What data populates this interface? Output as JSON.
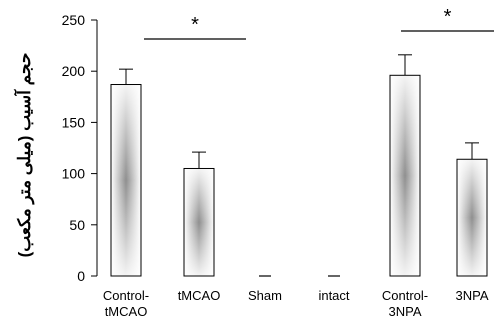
{
  "chart_data": {
    "type": "bar",
    "ylabel": "حجم آسیب (میلی متر مکعب)",
    "ylim": [
      0,
      250
    ],
    "yticks": [
      0,
      50,
      100,
      150,
      200,
      250
    ],
    "categories": [
      [
        "Control-",
        "tMCAO"
      ],
      [
        "tMCAO"
      ],
      [
        "Sham"
      ],
      [
        "intact"
      ],
      [
        "Control-",
        "3NPA"
      ],
      [
        "3NPA"
      ]
    ],
    "values": [
      187,
      105,
      0,
      0,
      196,
      114
    ],
    "errors": [
      15,
      16,
      0,
      0,
      20,
      16
    ],
    "significance": [
      {
        "from": "Control-tMCAO",
        "to": "Sham",
        "label": "*"
      },
      {
        "from": "Control-3NPA",
        "to": "3NPA",
        "label": "*"
      }
    ],
    "grid": false,
    "legend": "none"
  }
}
